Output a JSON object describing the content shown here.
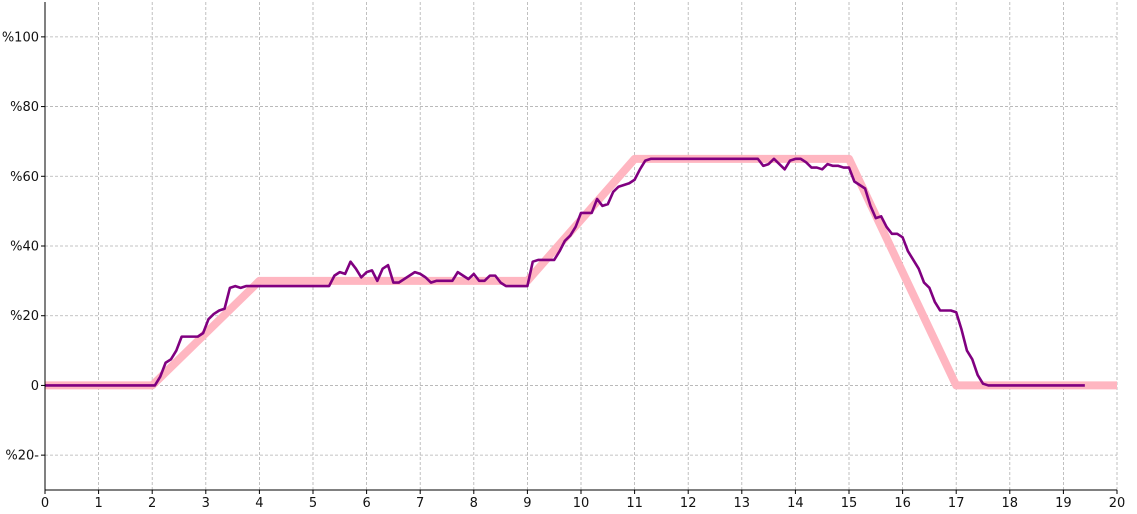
{
  "chart_data": {
    "type": "line",
    "title": "",
    "xlabel": "",
    "ylabel": "",
    "xlim": [
      0,
      20
    ],
    "ylim": [
      -30,
      110
    ],
    "grid": true,
    "legend": "none",
    "x_ticks": [
      {
        "value": 0,
        "label": "0"
      },
      {
        "value": 1,
        "label": "1"
      },
      {
        "value": 2,
        "label": "2"
      },
      {
        "value": 3,
        "label": "3"
      },
      {
        "value": 4,
        "label": "4"
      },
      {
        "value": 5,
        "label": "5"
      },
      {
        "value": 6,
        "label": "6"
      },
      {
        "value": 7,
        "label": "7"
      },
      {
        "value": 8,
        "label": "8"
      },
      {
        "value": 9,
        "label": "9"
      },
      {
        "value": 10,
        "label": "10"
      },
      {
        "value": 11,
        "label": "11"
      },
      {
        "value": 12,
        "label": "12"
      },
      {
        "value": 13,
        "label": "13"
      },
      {
        "value": 14,
        "label": "14"
      },
      {
        "value": 15,
        "label": "15"
      },
      {
        "value": 16,
        "label": "16"
      },
      {
        "value": 17,
        "label": "17"
      },
      {
        "value": 18,
        "label": "18"
      },
      {
        "value": 19,
        "label": "19"
      },
      {
        "value": 20,
        "label": "20"
      }
    ],
    "y_ticks": [
      {
        "value": -20,
        "label": "%20-"
      },
      {
        "value": 0,
        "label": "0"
      },
      {
        "value": 20,
        "label": "%20"
      },
      {
        "value": 40,
        "label": "%40"
      },
      {
        "value": 60,
        "label": "%60"
      },
      {
        "value": 80,
        "label": "%80"
      },
      {
        "value": 100,
        "label": "%100"
      }
    ],
    "series": [
      {
        "color": "#ffb6c1",
        "style": "thick",
        "x": [
          0,
          2,
          4,
          9,
          11,
          15,
          17,
          20
        ],
        "y": [
          0,
          0,
          30,
          30,
          65,
          65,
          0,
          0
        ]
      },
      {
        "color": "#800080",
        "style": "thin",
        "x": [
          0,
          2.05,
          2.15,
          2.25,
          2.35,
          2.45,
          2.55,
          2.7,
          2.85,
          2.95,
          3.05,
          3.15,
          3.25,
          3.35,
          3.45,
          3.55,
          3.65,
          3.75,
          3.85,
          4.0,
          4.5,
          5.0,
          5.3,
          5.4,
          5.5,
          5.6,
          5.7,
          5.8,
          5.9,
          6.0,
          6.1,
          6.2,
          6.3,
          6.4,
          6.5,
          6.6,
          6.7,
          6.8,
          6.9,
          7.0,
          7.1,
          7.2,
          7.3,
          7.4,
          7.5,
          7.6,
          7.7,
          7.8,
          7.9,
          8.0,
          8.1,
          8.2,
          8.3,
          8.4,
          8.5,
          8.6,
          9.0,
          9.1,
          9.2,
          9.3,
          9.4,
          9.5,
          9.6,
          9.7,
          9.8,
          9.9,
          10.0,
          10.1,
          10.2,
          10.3,
          10.4,
          10.5,
          10.6,
          10.7,
          10.8,
          10.9,
          11.0,
          11.1,
          11.2,
          11.3,
          12.0,
          13.0,
          13.3,
          13.4,
          13.5,
          13.6,
          13.7,
          13.8,
          13.9,
          14.0,
          14.1,
          14.2,
          14.3,
          14.4,
          14.5,
          14.6,
          14.7,
          14.8,
          14.9,
          15.0,
          15.1,
          15.2,
          15.3,
          15.4,
          15.5,
          15.6,
          15.7,
          15.8,
          15.9,
          16.0,
          16.1,
          16.2,
          16.3,
          16.4,
          16.5,
          16.6,
          16.7,
          16.8,
          16.9,
          17.0,
          17.1,
          17.2,
          17.3,
          17.4,
          17.5,
          17.6,
          18.0,
          19.0,
          19.4
        ],
        "y": [
          0,
          0,
          2.5,
          6.5,
          7.5,
          10,
          14,
          14,
          14,
          15,
          19,
          20.5,
          21.5,
          22,
          28,
          28.5,
          28,
          28.5,
          28.5,
          28.5,
          28.5,
          28.5,
          28.5,
          31.5,
          32.5,
          32,
          35.5,
          33.5,
          31,
          32.5,
          33,
          30,
          33.5,
          34.5,
          29.5,
          29.5,
          30.5,
          31.5,
          32.5,
          32,
          31,
          29.5,
          30,
          30,
          30,
          30,
          32.5,
          31.5,
          30.5,
          32,
          30,
          30,
          31.5,
          31.5,
          29.5,
          28.5,
          28.5,
          35.5,
          36,
          36,
          36,
          36,
          38.5,
          41.5,
          43,
          45.5,
          49.5,
          49.5,
          49.5,
          53.5,
          51.5,
          52,
          55.5,
          57,
          57.5,
          58,
          59,
          62,
          64.5,
          65,
          65,
          65,
          65,
          63,
          63.5,
          65,
          63.5,
          62,
          64.5,
          65,
          65,
          64,
          62.5,
          62.5,
          62,
          63.5,
          63,
          63,
          62.5,
          62.5,
          58.5,
          57.5,
          56.5,
          51.5,
          48,
          48.5,
          45.5,
          43.5,
          43.5,
          42.5,
          38.5,
          36,
          33.5,
          29.5,
          28,
          24,
          21.5,
          21.5,
          21.5,
          21,
          16,
          10,
          7.5,
          3,
          0.5,
          0,
          0,
          0,
          0
        ]
      }
    ]
  }
}
